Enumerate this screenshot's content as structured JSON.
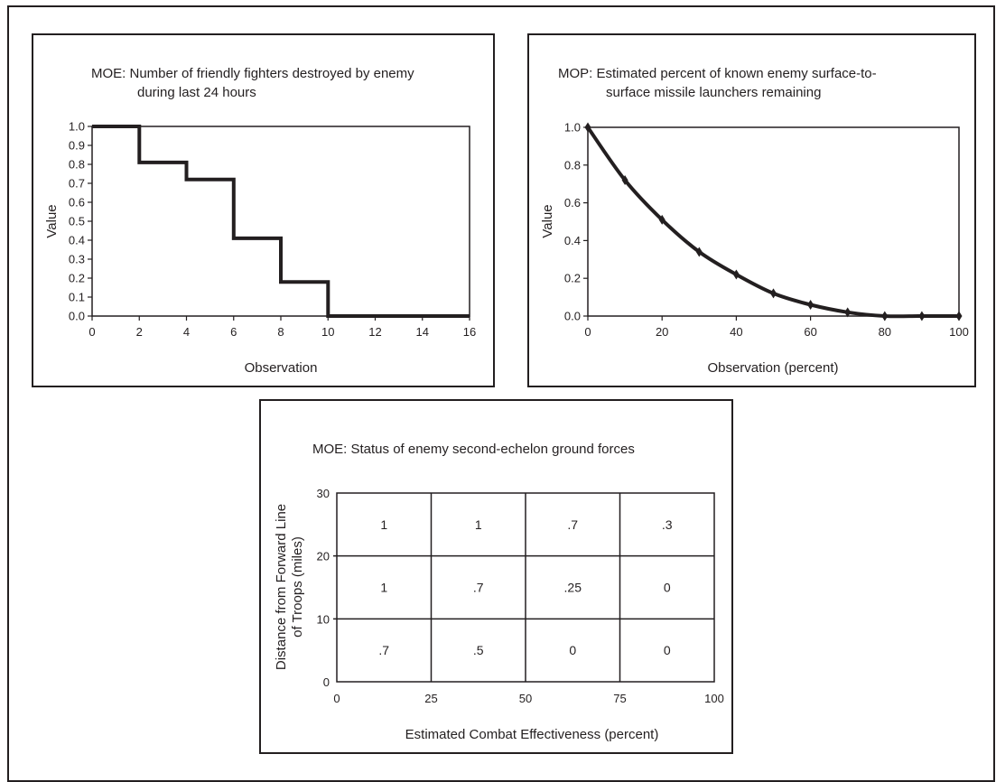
{
  "chart_data": [
    {
      "type": "line",
      "title_lines": [
        "MOE: Number of friendly fighters destroyed by enemy",
        "during last 24 hours"
      ],
      "xlabel": "Observation",
      "ylabel": "Value",
      "xlim": [
        0,
        16
      ],
      "ylim": [
        0,
        1.0
      ],
      "x_ticks": [
        0,
        2,
        4,
        6,
        8,
        10,
        12,
        14,
        16
      ],
      "x_tick_labels": [
        "0",
        "2",
        "4",
        "6",
        "8",
        "10",
        "12",
        "14",
        "16"
      ],
      "y_ticks": [
        0,
        0.1,
        0.2,
        0.3,
        0.4,
        0.5,
        0.6,
        0.7,
        0.8,
        0.9,
        1.0
      ],
      "y_tick_labels": [
        "0.0",
        "0.1",
        "0.2",
        "0.3",
        "0.4",
        "0.5",
        "0.6",
        "0.7",
        "0.8",
        "0.9",
        "1.0"
      ],
      "step_points": [
        [
          0,
          1.0
        ],
        [
          2,
          1.0
        ],
        [
          2,
          0.81
        ],
        [
          4,
          0.81
        ],
        [
          4,
          0.72
        ],
        [
          6,
          0.72
        ],
        [
          6,
          0.41
        ],
        [
          8,
          0.41
        ],
        [
          8,
          0.18
        ],
        [
          10,
          0.18
        ],
        [
          10,
          0.0
        ],
        [
          16,
          0.0
        ]
      ],
      "line_color": "#231f20"
    },
    {
      "type": "line",
      "title_lines": [
        "MOP: Estimated percent of known enemy surface-to-",
        "surface missile launchers remaining"
      ],
      "xlabel": "Observation (percent)",
      "ylabel": "Value",
      "xlim": [
        0,
        100
      ],
      "ylim": [
        0,
        1.0
      ],
      "x_ticks": [
        0,
        20,
        40,
        60,
        80,
        100
      ],
      "x_tick_labels": [
        "0",
        "20",
        "40",
        "60",
        "80",
        "100"
      ],
      "y_ticks": [
        0,
        0.2,
        0.4,
        0.6,
        0.8,
        1.0
      ],
      "y_tick_labels": [
        "0.0",
        "0.2",
        "0.4",
        "0.6",
        "0.8",
        "1.0"
      ],
      "x": [
        0,
        10,
        20,
        30,
        40,
        50,
        60,
        70,
        80,
        90,
        100
      ],
      "y": [
        1.0,
        0.72,
        0.51,
        0.34,
        0.22,
        0.12,
        0.06,
        0.02,
        0.0,
        0.0,
        0.0
      ],
      "marker": "diamond",
      "line_color": "#231f20"
    },
    {
      "type": "table",
      "title": "MOE: Status of enemy second-echelon ground forces",
      "xlabel": "Estimated Combat Effectiveness (percent)",
      "ylabel_lines": [
        "Distance from Forward Line",
        "of Troops (miles)"
      ],
      "x_tick_labels": [
        "0",
        "25",
        "50",
        "75",
        "100"
      ],
      "y_tick_labels": [
        "0",
        "10",
        "20",
        "30"
      ],
      "x_bins": [
        0,
        25,
        50,
        75,
        100
      ],
      "y_bins": [
        0,
        10,
        20,
        30
      ],
      "rows_top_to_bottom": [
        [
          "1",
          "1",
          ".7",
          ".3"
        ],
        [
          "1",
          ".7",
          ".25",
          "0"
        ],
        [
          ".7",
          ".5",
          "0",
          "0"
        ]
      ]
    }
  ]
}
